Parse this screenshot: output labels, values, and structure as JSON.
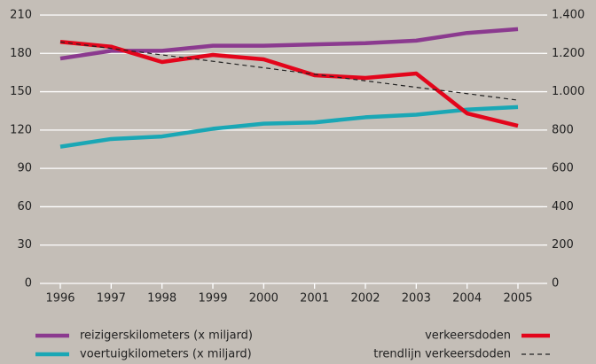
{
  "chart_data": {
    "type": "line",
    "categories": [
      "1996",
      "1997",
      "1998",
      "1999",
      "2000",
      "2001",
      "2002",
      "2003",
      "2004",
      "2005"
    ],
    "series": [
      {
        "name": "reizigerskilometers (x miljard)",
        "color": "#8b3a8f",
        "axis": "y",
        "values": [
          176,
          182,
          182,
          186,
          186,
          187,
          188,
          190,
          196,
          199
        ]
      },
      {
        "name": "voertuigkilometers (x miljard)",
        "color": "#1aa7b5",
        "axis": "y",
        "values": [
          107,
          113,
          115,
          121,
          125,
          126,
          130,
          132,
          136,
          138
        ]
      },
      {
        "name": "verkeersdoden",
        "color": "#e3051b",
        "axis": "y2",
        "values": [
          1260,
          1235,
          1155,
          1192,
          1169,
          1086,
          1072,
          1095,
          887,
          822
        ]
      },
      {
        "name": "trendlijn verkeersdoden",
        "color": "#222222",
        "axis": "y2",
        "dashed": true,
        "values": [
          1260,
          1226,
          1192,
          1159,
          1125,
          1091,
          1057,
          1023,
          990,
          956
        ]
      }
    ],
    "ylim": [
      0,
      210
    ],
    "yticks": [
      0,
      30,
      60,
      90,
      120,
      150,
      180,
      210
    ],
    "y2lim": [
      0,
      1400
    ],
    "y2ticks": [
      0,
      200,
      400,
      600,
      800,
      {
        "value": 1000,
        "label": "1.000"
      },
      {
        "value": 1200,
        "label": "1.200"
      },
      {
        "value": 1400,
        "label": "1.400"
      }
    ],
    "grid": true,
    "legend": "bottom"
  }
}
